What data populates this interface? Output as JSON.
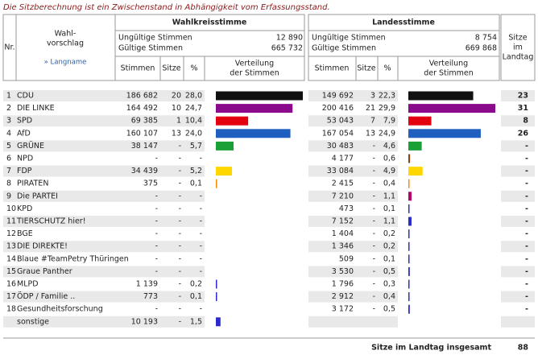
{
  "notice": "Die Sitzberechnung ist ein Zwischenstand in Abhängigkeit vom Erfassungsstand.",
  "header": {
    "nr": "Nr.",
    "wahlvorschlag": [
      "Wahl-",
      "vorschlag"
    ],
    "langname": "» Langname",
    "wahlkreis": "Wahlkreisstimme",
    "landes": "Landesstimme",
    "wk_invalid_label": "Ungültige Stimmen",
    "wk_invalid": "12 890",
    "wk_valid_label": "Gültige Stimmen",
    "wk_valid": "665 732",
    "ls_invalid_label": "Ungültige Stimmen",
    "ls_invalid": "8 754",
    "ls_valid_label": "Gültige Stimmen",
    "ls_valid": "669 868",
    "stimmen": "Stimmen",
    "sitze": "Sitze",
    "pct": "%",
    "verteilung": [
      "Verteilung",
      "der Stimmen"
    ],
    "sitze_landtag": [
      "Sitze",
      "im",
      "Landtag"
    ]
  },
  "rows": [
    {
      "nr": "1",
      "name": "CDU",
      "wk_stimmen": "186 682",
      "wk_sitze": "20",
      "wk_pct": "28,0",
      "ls_stimmen": "149 692",
      "ls_sitze": "3",
      "ls_pct": "22,3",
      "seats": "23",
      "color": "#111111"
    },
    {
      "nr": "2",
      "name": "DIE LINKE",
      "wk_stimmen": "164 492",
      "wk_sitze": "10",
      "wk_pct": "24,7",
      "ls_stimmen": "200 416",
      "ls_sitze": "21",
      "ls_pct": "29,9",
      "seats": "31",
      "color": "#8b0a8b"
    },
    {
      "nr": "3",
      "name": "SPD",
      "wk_stimmen": "69 385",
      "wk_sitze": "1",
      "wk_pct": "10,4",
      "ls_stimmen": "53 043",
      "ls_sitze": "7",
      "ls_pct": "7,9",
      "seats": "8",
      "color": "#e3000f"
    },
    {
      "nr": "4",
      "name": "AfD",
      "wk_stimmen": "160 107",
      "wk_sitze": "13",
      "wk_pct": "24,0",
      "ls_stimmen": "167 054",
      "ls_sitze": "13",
      "ls_pct": "24,9",
      "seats": "26",
      "color": "#1f5fbf"
    },
    {
      "nr": "5",
      "name": "GRÜNE",
      "wk_stimmen": "38 147",
      "wk_sitze": "-",
      "wk_pct": "5,7",
      "ls_stimmen": "30 483",
      "ls_sitze": "-",
      "ls_pct": "4,6",
      "seats": "-",
      "color": "#1aa037"
    },
    {
      "nr": "6",
      "name": "NPD",
      "wk_stimmen": "-",
      "wk_sitze": "-",
      "wk_pct": "-",
      "ls_stimmen": "4 177",
      "ls_sitze": "-",
      "ls_pct": "0,6",
      "seats": "-",
      "color": "#8b4513"
    },
    {
      "nr": "7",
      "name": "FDP",
      "wk_stimmen": "34 439",
      "wk_sitze": "-",
      "wk_pct": "5,2",
      "ls_stimmen": "33 084",
      "ls_sitze": "-",
      "ls_pct": "4,9",
      "seats": "-",
      "color": "#ffd700"
    },
    {
      "nr": "8",
      "name": "PIRATEN",
      "wk_stimmen": "375",
      "wk_sitze": "-",
      "wk_pct": "0,1",
      "ls_stimmen": "2 415",
      "ls_sitze": "-",
      "ls_pct": "0,4",
      "seats": "-",
      "color": "#ff8800"
    },
    {
      "nr": "9",
      "name": "Die PARTEI",
      "wk_stimmen": "-",
      "wk_sitze": "-",
      "wk_pct": "-",
      "ls_stimmen": "7 210",
      "ls_sitze": "-",
      "ls_pct": "1,1",
      "seats": "-",
      "color": "#b5006e"
    },
    {
      "nr": "10",
      "name": "KPD",
      "wk_stimmen": "-",
      "wk_sitze": "-",
      "wk_pct": "-",
      "ls_stimmen": "473",
      "ls_sitze": "-",
      "ls_pct": "0,1",
      "seats": "-",
      "color": "#2b2bcc"
    },
    {
      "nr": "11",
      "name": "TIERSCHUTZ hier!",
      "wk_stimmen": "-",
      "wk_sitze": "-",
      "wk_pct": "-",
      "ls_stimmen": "7 152",
      "ls_sitze": "-",
      "ls_pct": "1,1",
      "seats": "-",
      "color": "#2b2bcc"
    },
    {
      "nr": "12",
      "name": "BGE",
      "wk_stimmen": "-",
      "wk_sitze": "-",
      "wk_pct": "-",
      "ls_stimmen": "1 404",
      "ls_sitze": "-",
      "ls_pct": "0,2",
      "seats": "-",
      "color": "#2b2bcc"
    },
    {
      "nr": "13",
      "name": "DIE DIREKTE!",
      "wk_stimmen": "-",
      "wk_sitze": "-",
      "wk_pct": "-",
      "ls_stimmen": "1 346",
      "ls_sitze": "-",
      "ls_pct": "0,2",
      "seats": "-",
      "color": "#2b2bcc"
    },
    {
      "nr": "14",
      "name": "Blaue #TeamPetry Thüringen",
      "wk_stimmen": "-",
      "wk_sitze": "-",
      "wk_pct": "-",
      "ls_stimmen": "509",
      "ls_sitze": "-",
      "ls_pct": "0,1",
      "seats": "-",
      "color": "#2b2bcc"
    },
    {
      "nr": "15",
      "name": "Graue Panther",
      "wk_stimmen": "-",
      "wk_sitze": "-",
      "wk_pct": "-",
      "ls_stimmen": "3 530",
      "ls_sitze": "-",
      "ls_pct": "0,5",
      "seats": "-",
      "color": "#2b2bcc"
    },
    {
      "nr": "16",
      "name": "MLPD",
      "wk_stimmen": "1 139",
      "wk_sitze": "-",
      "wk_pct": "0,2",
      "ls_stimmen": "1 796",
      "ls_sitze": "-",
      "ls_pct": "0,3",
      "seats": "-",
      "color": "#2b2bcc"
    },
    {
      "nr": "17",
      "name": "ÖDP / Familie ..",
      "wk_stimmen": "773",
      "wk_sitze": "-",
      "wk_pct": "0,1",
      "ls_stimmen": "2 912",
      "ls_sitze": "-",
      "ls_pct": "0,4",
      "seats": "-",
      "color": "#2b2bcc"
    },
    {
      "nr": "18",
      "name": "Gesundheitsforschung",
      "wk_stimmen": "-",
      "wk_sitze": "-",
      "wk_pct": "-",
      "ls_stimmen": "3 172",
      "ls_sitze": "-",
      "ls_pct": "0,5",
      "seats": "-",
      "color": "#2b2bcc"
    },
    {
      "name": "sonstige",
      "wk_stimmen": "10 193",
      "wk_sitze": "-",
      "wk_pct": "1,5",
      "color": "#2b2bcc"
    }
  ],
  "footer": {
    "label": "Sitze im Landtag insgesamt",
    "total": "88"
  }
}
